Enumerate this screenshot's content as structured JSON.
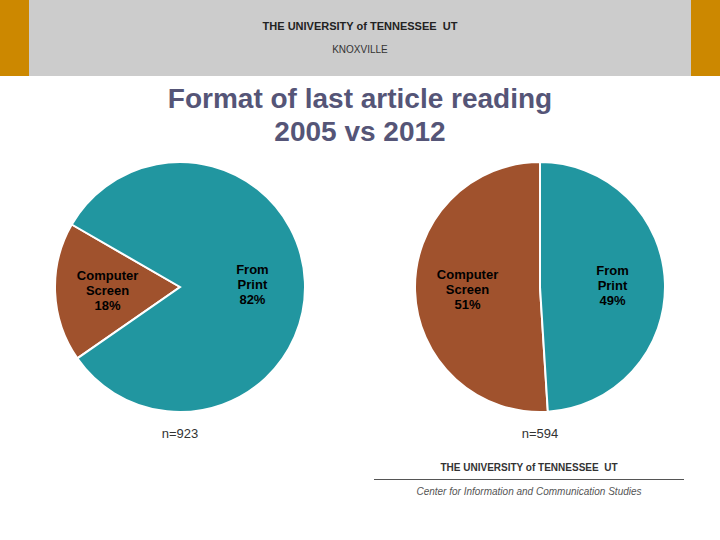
{
  "chart_data": [
    {
      "type": "pie",
      "title": "Format of last article reading\n2005 vs 2012",
      "categories": [
        "Computer\nScreen",
        "From\nPrint"
      ],
      "values": [
        18,
        82
      ],
      "value_labels": [
        "18%",
        "82%"
      ],
      "colors": [
        "#a0522d",
        "#2196a0"
      ],
      "data_labels": true,
      "annotations": [
        "n=923",
        "THE UNIVERSITY of TENNESSEE  UT",
        "KNOXVILLE",
        "THE UNIVERSITY of TENNESSEE  UT",
        "Center for Information and Communication Studies"
      ]
    },
    {
      "type": "pie",
      "categories": [
        "Computer\nScreen",
        "From\nPrint"
      ],
      "values": [
        51,
        49
      ],
      "value_labels": [
        "51%",
        "49%"
      ],
      "colors": [
        "#a0522d",
        "#2196a0"
      ],
      "data_labels": true,
      "annotations": [
        "n=594"
      ]
    }
  ]
}
